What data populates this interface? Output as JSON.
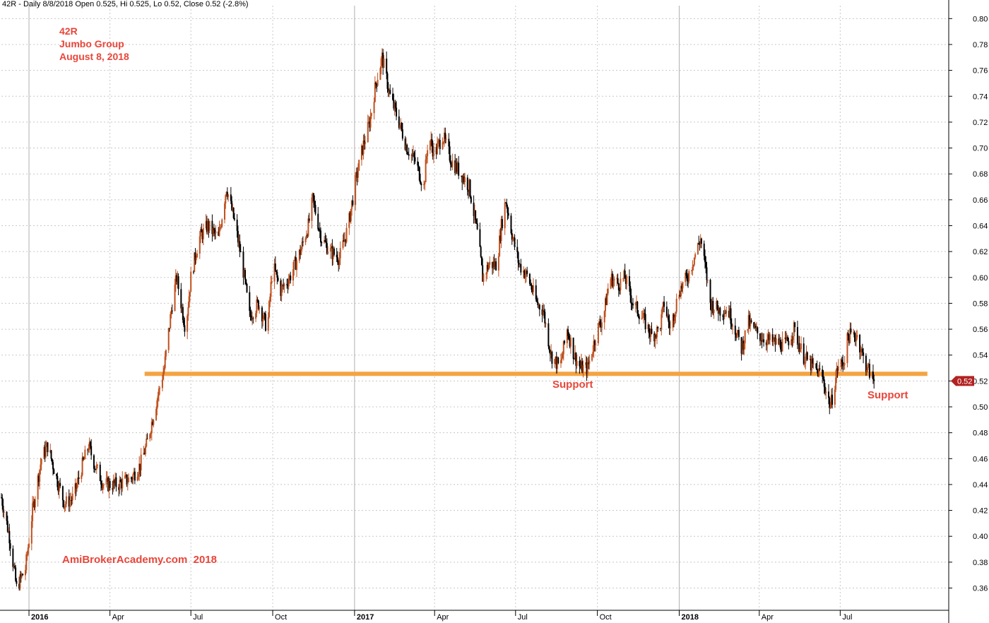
{
  "header": {
    "text": "42R - Daily 8/8/2018 Open 0.525, Hi 0.525, Lo 0.52, Close 0.52 (-2.8%)"
  },
  "annotations": {
    "ticker": "42R",
    "company": "Jumbo Group",
    "date": "August 8, 2018",
    "watermark": "AmiBrokerAcademy.com  2018",
    "support_1": "Support",
    "support_2": "Support"
  },
  "colors": {
    "up_candle": "#c0501e",
    "down_candle": "#000000",
    "support_line": "#f4a442",
    "annotation_text": "#e8463a",
    "grid": "#c8c8c8",
    "price_badge": "#b22222"
  },
  "chart_data": {
    "type": "candlestick",
    "title": "",
    "xlabel": "",
    "ylabel": "",
    "ylim": [
      0.345,
      0.81
    ],
    "y_ticks": [
      "0.36",
      "0.38",
      "0.40",
      "0.42",
      "0.44",
      "0.46",
      "0.48",
      "0.50",
      "0.52",
      "0.54",
      "0.56",
      "0.58",
      "0.60",
      "0.62",
      "0.64",
      "0.66",
      "0.68",
      "0.70",
      "0.72",
      "0.74",
      "0.76",
      "0.78",
      "0.80"
    ],
    "x_ticks": [
      {
        "label": "2016",
        "bold": true
      },
      {
        "label": "Apr",
        "bold": false
      },
      {
        "label": "Jul",
        "bold": false
      },
      {
        "label": "Oct",
        "bold": false
      },
      {
        "label": "2017",
        "bold": true
      },
      {
        "label": "Apr",
        "bold": false
      },
      {
        "label": "Jul",
        "bold": false
      },
      {
        "label": "Oct",
        "bold": false
      },
      {
        "label": "2018",
        "bold": true
      },
      {
        "label": "Apr",
        "bold": false
      },
      {
        "label": "Jul",
        "bold": false
      }
    ],
    "x_range": [
      "2015-12-01",
      "2018-10-31"
    ],
    "x_tick_dates": [
      "2016-01-01",
      "2016-04-01",
      "2016-07-01",
      "2016-10-01",
      "2017-01-01",
      "2017-04-01",
      "2017-07-01",
      "2017-10-01",
      "2018-01-01",
      "2018-04-01",
      "2018-07-01"
    ],
    "support_level": 0.5255,
    "support_range": [
      "2016-05-10",
      "2018-10-07"
    ],
    "last_close": 0.52,
    "last_close_label": "0.52",
    "price_path": [
      [
        "2015-12-01",
        0.43
      ],
      [
        "2015-12-10",
        0.4
      ],
      [
        "2015-12-18",
        0.36
      ],
      [
        "2015-12-28",
        0.375
      ],
      [
        "2016-01-05",
        0.42
      ],
      [
        "2016-01-15",
        0.46
      ],
      [
        "2016-01-22",
        0.47
      ],
      [
        "2016-02-01",
        0.445
      ],
      [
        "2016-02-10",
        0.425
      ],
      [
        "2016-02-20",
        0.43
      ],
      [
        "2016-03-01",
        0.455
      ],
      [
        "2016-03-08",
        0.47
      ],
      [
        "2016-03-15",
        0.455
      ],
      [
        "2016-03-25",
        0.44
      ],
      [
        "2016-04-10",
        0.44
      ],
      [
        "2016-04-25",
        0.445
      ],
      [
        "2016-05-05",
        0.455
      ],
      [
        "2016-05-12",
        0.47
      ],
      [
        "2016-05-22",
        0.5
      ],
      [
        "2016-06-01",
        0.53
      ],
      [
        "2016-06-10",
        0.58
      ],
      [
        "2016-06-15",
        0.6
      ],
      [
        "2016-06-25",
        0.56
      ],
      [
        "2016-07-01",
        0.6
      ],
      [
        "2016-07-10",
        0.63
      ],
      [
        "2016-07-20",
        0.64
      ],
      [
        "2016-08-01",
        0.63
      ],
      [
        "2016-08-10",
        0.67
      ],
      [
        "2016-08-20",
        0.64
      ],
      [
        "2016-08-28",
        0.61
      ],
      [
        "2016-09-05",
        0.57
      ],
      [
        "2016-09-15",
        0.58
      ],
      [
        "2016-09-25",
        0.56
      ],
      [
        "2016-10-01",
        0.61
      ],
      [
        "2016-10-10",
        0.59
      ],
      [
        "2016-10-20",
        0.6
      ],
      [
        "2016-11-01",
        0.62
      ],
      [
        "2016-11-10",
        0.64
      ],
      [
        "2016-11-15",
        0.66
      ],
      [
        "2016-11-25",
        0.63
      ],
      [
        "2016-12-05",
        0.62
      ],
      [
        "2016-12-15",
        0.615
      ],
      [
        "2016-12-25",
        0.64
      ],
      [
        "2017-01-01",
        0.67
      ],
      [
        "2017-01-10",
        0.7
      ],
      [
        "2017-01-18",
        0.72
      ],
      [
        "2017-01-25",
        0.75
      ],
      [
        "2017-02-01",
        0.77
      ],
      [
        "2017-02-10",
        0.74
      ],
      [
        "2017-02-20",
        0.72
      ],
      [
        "2017-03-01",
        0.7
      ],
      [
        "2017-03-10",
        0.69
      ],
      [
        "2017-03-20",
        0.67
      ],
      [
        "2017-03-25",
        0.71
      ],
      [
        "2017-04-01",
        0.695
      ],
      [
        "2017-04-10",
        0.71
      ],
      [
        "2017-04-20",
        0.69
      ],
      [
        "2017-05-01",
        0.68
      ],
      [
        "2017-05-10",
        0.67
      ],
      [
        "2017-05-20",
        0.63
      ],
      [
        "2017-05-25",
        0.6
      ],
      [
        "2017-06-01",
        0.61
      ],
      [
        "2017-06-10",
        0.61
      ],
      [
        "2017-06-15",
        0.64
      ],
      [
        "2017-06-20",
        0.66
      ],
      [
        "2017-06-28",
        0.63
      ],
      [
        "2017-07-05",
        0.61
      ],
      [
        "2017-07-15",
        0.6
      ],
      [
        "2017-07-25",
        0.58
      ],
      [
        "2017-08-01",
        0.575
      ],
      [
        "2017-08-10",
        0.54
      ],
      [
        "2017-08-20",
        0.53
      ],
      [
        "2017-08-28",
        0.56
      ],
      [
        "2017-09-05",
        0.54
      ],
      [
        "2017-09-12",
        0.53
      ],
      [
        "2017-09-20",
        0.53
      ],
      [
        "2017-10-01",
        0.56
      ],
      [
        "2017-10-08",
        0.57
      ],
      [
        "2017-10-15",
        0.6
      ],
      [
        "2017-10-25",
        0.595
      ],
      [
        "2017-11-01",
        0.6
      ],
      [
        "2017-11-10",
        0.58
      ],
      [
        "2017-11-20",
        0.57
      ],
      [
        "2017-12-01",
        0.555
      ],
      [
        "2017-12-10",
        0.56
      ],
      [
        "2017-12-15",
        0.58
      ],
      [
        "2017-12-22",
        0.56
      ],
      [
        "2018-01-01",
        0.59
      ],
      [
        "2018-01-10",
        0.6
      ],
      [
        "2018-01-20",
        0.62
      ],
      [
        "2018-01-25",
        0.63
      ],
      [
        "2018-02-01",
        0.6
      ],
      [
        "2018-02-05",
        0.58
      ],
      [
        "2018-02-15",
        0.575
      ],
      [
        "2018-02-25",
        0.575
      ],
      [
        "2018-03-05",
        0.56
      ],
      [
        "2018-03-12",
        0.545
      ],
      [
        "2018-03-20",
        0.565
      ],
      [
        "2018-04-01",
        0.555
      ],
      [
        "2018-04-15",
        0.55
      ],
      [
        "2018-05-01",
        0.548
      ],
      [
        "2018-05-10",
        0.56
      ],
      [
        "2018-05-20",
        0.54
      ],
      [
        "2018-06-01",
        0.53
      ],
      [
        "2018-06-10",
        0.525
      ],
      [
        "2018-06-20",
        0.5
      ],
      [
        "2018-06-28",
        0.53
      ],
      [
        "2018-07-05",
        0.535
      ],
      [
        "2018-07-10",
        0.555
      ],
      [
        "2018-07-20",
        0.555
      ],
      [
        "2018-07-28",
        0.535
      ],
      [
        "2018-08-08",
        0.52
      ]
    ]
  }
}
